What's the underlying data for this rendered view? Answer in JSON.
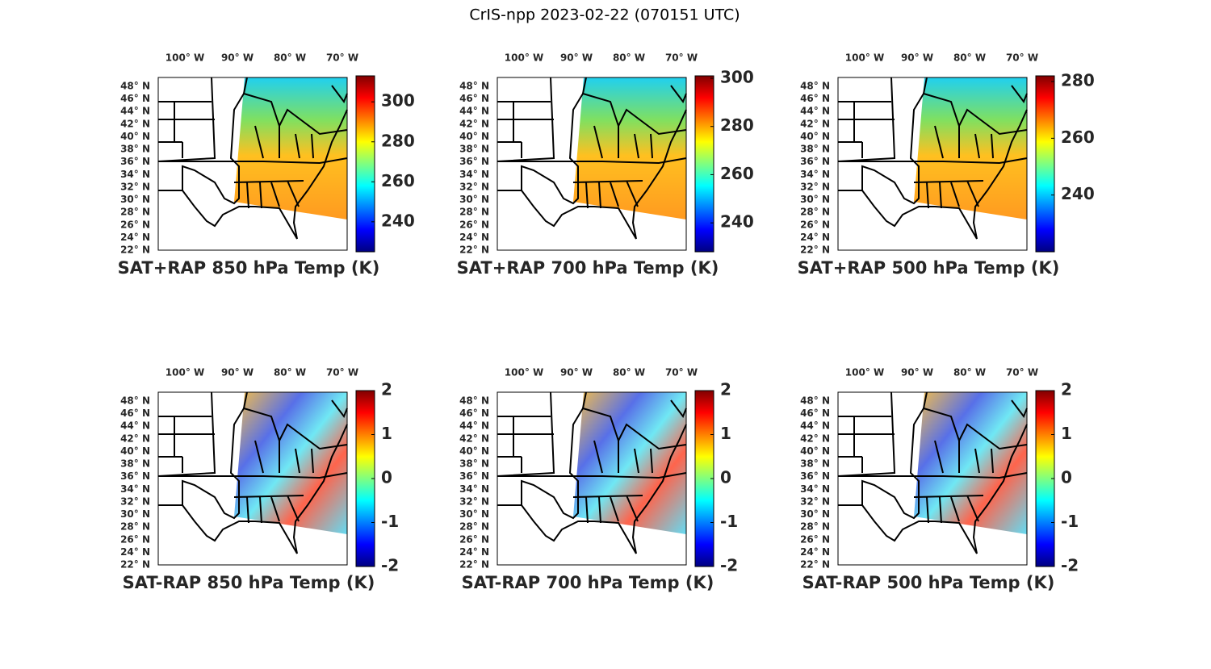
{
  "title": "CrIS-npp 2023-02-22 (070151 UTC)",
  "panels": [
    {
      "caption": "SAT+RAP 850 hPa Temp (K)",
      "kind": "field",
      "lon_labels": [
        "100° W",
        "90° W",
        "80° W",
        "70° W"
      ],
      "lat_labels": [
        "48° N",
        "46° N",
        "44° N",
        "42° N",
        "40° N",
        "38° N",
        "36° N",
        "34° N",
        "32° N",
        "30° N",
        "28° N",
        "26° N",
        "24° N",
        "22° N"
      ],
      "clim": [
        225,
        313
      ],
      "cticks": [
        240,
        260,
        280,
        300
      ]
    },
    {
      "caption": "SAT+RAP 700 hPa Temp (K)",
      "kind": "field",
      "lon_labels": [
        "100° W",
        "90° W",
        "80° W",
        "70° W"
      ],
      "lat_labels": [
        "48° N",
        "46° N",
        "44° N",
        "42° N",
        "40° N",
        "38° N",
        "36° N",
        "34° N",
        "32° N",
        "30° N",
        "28° N",
        "26° N",
        "24° N",
        "22° N"
      ],
      "clim": [
        228,
        301
      ],
      "cticks": [
        240,
        260,
        280,
        300
      ]
    },
    {
      "caption": "SAT+RAP 500 hPa Temp (K)",
      "kind": "field",
      "lon_labels": [
        "100° W",
        "90° W",
        "80° W",
        "70° W"
      ],
      "lat_labels": [
        "48° N",
        "46° N",
        "44° N",
        "42° N",
        "40° N",
        "38° N",
        "36° N",
        "34° N",
        "32° N",
        "30° N",
        "28° N",
        "26° N",
        "24° N",
        "22° N"
      ],
      "clim": [
        220,
        282
      ],
      "cticks": [
        240,
        260,
        280
      ]
    },
    {
      "caption": "SAT-RAP 850 hPa Temp (K)",
      "kind": "diff",
      "lon_labels": [
        "100° W",
        "90° W",
        "80° W",
        "70° W"
      ],
      "lat_labels": [
        "48° N",
        "46° N",
        "44° N",
        "42° N",
        "40° N",
        "38° N",
        "36° N",
        "34° N",
        "32° N",
        "30° N",
        "28° N",
        "26° N",
        "24° N",
        "22° N"
      ],
      "clim": [
        -2,
        2
      ],
      "cticks": [
        -2,
        -1,
        0,
        1,
        2
      ]
    },
    {
      "caption": "SAT-RAP 700 hPa Temp (K)",
      "kind": "diff",
      "lon_labels": [
        "100° W",
        "90° W",
        "80° W",
        "70° W"
      ],
      "lat_labels": [
        "48° N",
        "46° N",
        "44° N",
        "42° N",
        "40° N",
        "38° N",
        "36° N",
        "34° N",
        "32° N",
        "30° N",
        "28° N",
        "26° N",
        "24° N",
        "22° N"
      ],
      "clim": [
        -2,
        2
      ],
      "cticks": [
        -2,
        -1,
        0,
        1,
        2
      ]
    },
    {
      "caption": "SAT-RAP 500 hPa Temp (K)",
      "kind": "diff",
      "lon_labels": [
        "100° W",
        "90° W",
        "80° W",
        "70° W"
      ],
      "lat_labels": [
        "48° N",
        "46° N",
        "44° N",
        "42° N",
        "40° N",
        "38° N",
        "36° N",
        "34° N",
        "32° N",
        "30° N",
        "28° N",
        "26° N",
        "24° N",
        "22° N"
      ],
      "clim": [
        -2,
        2
      ],
      "cticks": [
        -2,
        -1,
        0,
        1,
        2
      ]
    }
  ]
}
